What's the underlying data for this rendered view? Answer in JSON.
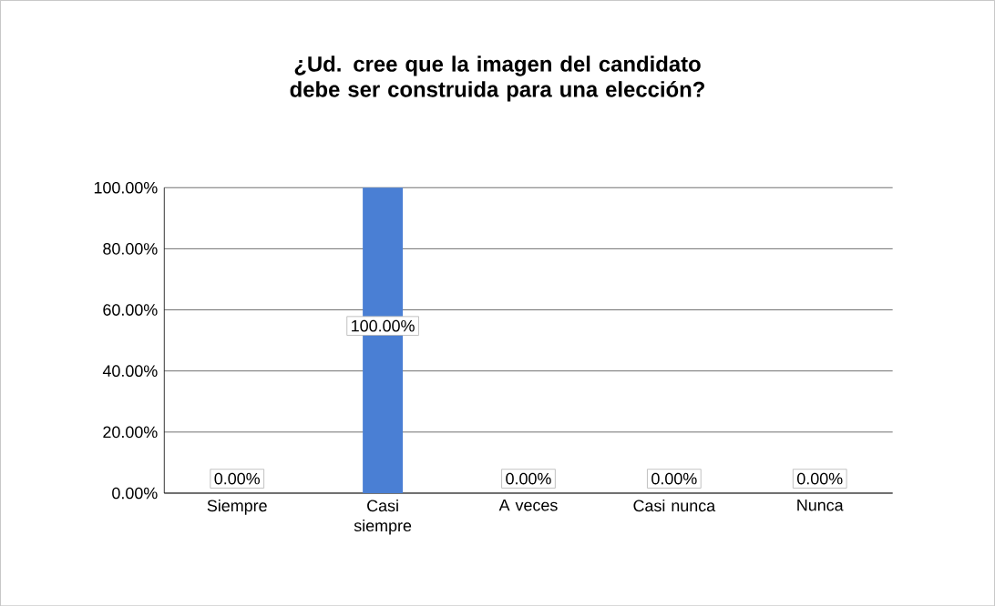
{
  "chart_data": {
    "type": "bar",
    "title": "¿Ud. cree que la imagen del candidato debe ser construida para una elección?",
    "categories": [
      "Siempre",
      "Casi siempre",
      "A veces",
      "Casi nunca",
      "Nunca"
    ],
    "values": [
      0,
      100,
      0,
      0,
      0
    ],
    "value_labels": [
      "0.00%",
      "100.00%",
      "0.00%",
      "0.00%",
      "0.00%"
    ],
    "color": "#4a7fd4",
    "ylim": [
      0,
      100
    ],
    "yticks": [
      {
        "value": 0,
        "label": "0.00%"
      },
      {
        "value": 20,
        "label": "20.00%"
      },
      {
        "value": 40,
        "label": "40.00%"
      },
      {
        "value": 60,
        "label": "60.00%"
      },
      {
        "value": 80,
        "label": "80.00%"
      },
      {
        "value": 100,
        "label": "100.00%"
      }
    ],
    "grid": "y"
  }
}
